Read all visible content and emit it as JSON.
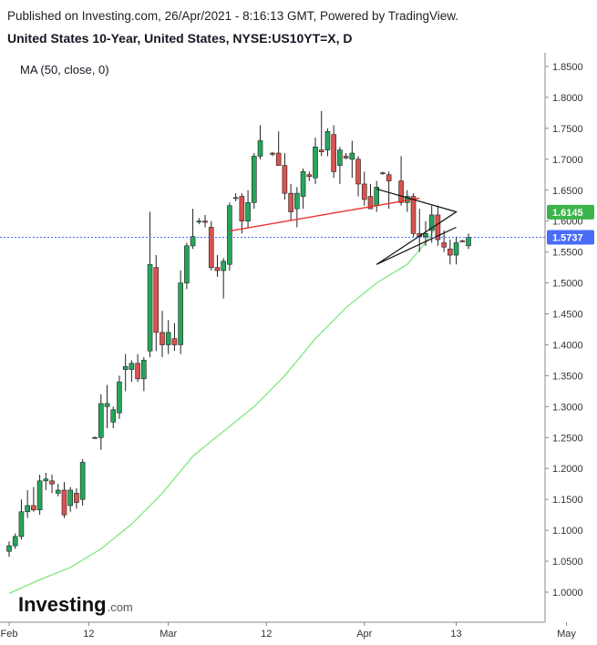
{
  "header": {
    "published": "Published on Investing.com, 26/Apr/2021 - 8:16:13 GMT, Powered by TradingView.",
    "title": "United States 10-Year, United States, NYSE:US10YT=X, D"
  },
  "indicator_label": "MA (50, close, 0)",
  "logo": {
    "text": "Investing",
    "suffix": ".com"
  },
  "colors": {
    "up": "#26a65b",
    "down": "#d9534f",
    "wick": "#222222",
    "ma": "#7ee87e",
    "price_tag": "#4a6cf7",
    "ma_tag": "#3cb44b",
    "trendline": "#e8302a",
    "triangle": "#111111"
  },
  "chart_data": {
    "type": "candlestick",
    "title": "United States 10-Year, United States, NYSE:US10YT=X, D",
    "ylim": [
      0.965,
      1.875
    ],
    "y_ticks": [
      "1.8500",
      "1.8000",
      "1.7500",
      "1.7000",
      "1.6500",
      "1.6000",
      "1.5500",
      "1.5000",
      "1.4500",
      "1.4000",
      "1.3500",
      "1.3000",
      "1.2500",
      "1.2000",
      "1.1500",
      "1.1000",
      "1.0500",
      "1.0000"
    ],
    "x_ticks": [
      {
        "label": "Feb",
        "index": 0
      },
      {
        "label": "12",
        "index": 13
      },
      {
        "label": "Mar",
        "index": 26
      },
      {
        "label": "12",
        "index": 42
      },
      {
        "label": "Apr",
        "index": 58
      },
      {
        "label": "13",
        "index": 73
      },
      {
        "label": "May",
        "index": 91
      }
    ],
    "candles": [
      {
        "o": 1.066,
        "h": 1.082,
        "l": 1.057,
        "c": 1.075
      },
      {
        "o": 1.075,
        "h": 1.095,
        "l": 1.07,
        "c": 1.09
      },
      {
        "o": 1.09,
        "h": 1.15,
        "l": 1.085,
        "c": 1.13
      },
      {
        "o": 1.13,
        "h": 1.165,
        "l": 1.12,
        "c": 1.14
      },
      {
        "o": 1.14,
        "h": 1.17,
        "l": 1.13,
        "c": 1.133
      },
      {
        "o": 1.133,
        "h": 1.19,
        "l": 1.125,
        "c": 1.18
      },
      {
        "o": 1.18,
        "h": 1.193,
        "l": 1.165,
        "c": 1.183
      },
      {
        "o": 1.18,
        "h": 1.19,
        "l": 1.16,
        "c": 1.175
      },
      {
        "o": 1.16,
        "h": 1.175,
        "l": 1.155,
        "c": 1.165
      },
      {
        "o": 1.165,
        "h": 1.178,
        "l": 1.12,
        "c": 1.125
      },
      {
        "o": 1.14,
        "h": 1.17,
        "l": 1.13,
        "c": 1.165
      },
      {
        "o": 1.16,
        "h": 1.168,
        "l": 1.135,
        "c": 1.145
      },
      {
        "o": 1.15,
        "h": 1.215,
        "l": 1.14,
        "c": 1.21
      },
      {
        "o": 1.25,
        "h": 1.252,
        "l": 1.248,
        "c": 1.25
      },
      {
        "o": 1.25,
        "h": 1.32,
        "l": 1.23,
        "c": 1.305
      },
      {
        "o": 1.3,
        "h": 1.335,
        "l": 1.265,
        "c": 1.305
      },
      {
        "o": 1.275,
        "h": 1.3,
        "l": 1.265,
        "c": 1.295
      },
      {
        "o": 1.29,
        "h": 1.35,
        "l": 1.28,
        "c": 1.34
      },
      {
        "o": 1.36,
        "h": 1.385,
        "l": 1.325,
        "c": 1.365
      },
      {
        "o": 1.36,
        "h": 1.375,
        "l": 1.34,
        "c": 1.37
      },
      {
        "o": 1.37,
        "h": 1.385,
        "l": 1.34,
        "c": 1.345
      },
      {
        "o": 1.345,
        "h": 1.38,
        "l": 1.325,
        "c": 1.375
      },
      {
        "o": 1.39,
        "h": 1.615,
        "l": 1.38,
        "c": 1.53
      },
      {
        "o": 1.525,
        "h": 1.545,
        "l": 1.39,
        "c": 1.42
      },
      {
        "o": 1.42,
        "h": 1.455,
        "l": 1.38,
        "c": 1.4
      },
      {
        "o": 1.4,
        "h": 1.44,
        "l": 1.385,
        "c": 1.42
      },
      {
        "o": 1.41,
        "h": 1.435,
        "l": 1.39,
        "c": 1.4
      },
      {
        "o": 1.4,
        "h": 1.52,
        "l": 1.385,
        "c": 1.5
      },
      {
        "o": 1.5,
        "h": 1.565,
        "l": 1.49,
        "c": 1.56
      },
      {
        "o": 1.56,
        "h": 1.62,
        "l": 1.555,
        "c": 1.575
      },
      {
        "o": 1.6,
        "h": 1.605,
        "l": 1.595,
        "c": 1.6
      },
      {
        "o": 1.6,
        "h": 1.61,
        "l": 1.59,
        "c": 1.598
      },
      {
        "o": 1.59,
        "h": 1.6,
        "l": 1.52,
        "c": 1.525
      },
      {
        "o": 1.525,
        "h": 1.545,
        "l": 1.51,
        "c": 1.52
      },
      {
        "o": 1.52,
        "h": 1.54,
        "l": 1.475,
        "c": 1.535
      },
      {
        "o": 1.53,
        "h": 1.63,
        "l": 1.52,
        "c": 1.625
      },
      {
        "o": 1.638,
        "h": 1.645,
        "l": 1.632,
        "c": 1.638
      },
      {
        "o": 1.64,
        "h": 1.645,
        "l": 1.58,
        "c": 1.6
      },
      {
        "o": 1.6,
        "h": 1.65,
        "l": 1.59,
        "c": 1.63
      },
      {
        "o": 1.63,
        "h": 1.71,
        "l": 1.62,
        "c": 1.705
      },
      {
        "o": 1.705,
        "h": 1.755,
        "l": 1.7,
        "c": 1.73
      },
      {
        "o": 1.71,
        "h": 1.712,
        "l": 1.705,
        "c": 1.708
      },
      {
        "o": 1.71,
        "h": 1.745,
        "l": 1.69,
        "c": 1.69
      },
      {
        "o": 1.69,
        "h": 1.71,
        "l": 1.635,
        "c": 1.645
      },
      {
        "o": 1.645,
        "h": 1.66,
        "l": 1.6,
        "c": 1.615
      },
      {
        "o": 1.62,
        "h": 1.655,
        "l": 1.59,
        "c": 1.645
      },
      {
        "o": 1.64,
        "h": 1.685,
        "l": 1.62,
        "c": 1.68
      },
      {
        "o": 1.675,
        "h": 1.68,
        "l": 1.665,
        "c": 1.672
      },
      {
        "o": 1.67,
        "h": 1.735,
        "l": 1.66,
        "c": 1.72
      },
      {
        "o": 1.715,
        "h": 1.778,
        "l": 1.705,
        "c": 1.712
      },
      {
        "o": 1.715,
        "h": 1.75,
        "l": 1.705,
        "c": 1.745
      },
      {
        "o": 1.74,
        "h": 1.755,
        "l": 1.67,
        "c": 1.68
      },
      {
        "o": 1.69,
        "h": 1.72,
        "l": 1.66,
        "c": 1.715
      },
      {
        "o": 1.705,
        "h": 1.71,
        "l": 1.7,
        "c": 1.702
      },
      {
        "o": 1.7,
        "h": 1.73,
        "l": 1.67,
        "c": 1.71
      },
      {
        "o": 1.7,
        "h": 1.705,
        "l": 1.64,
        "c": 1.66
      },
      {
        "o": 1.66,
        "h": 1.68,
        "l": 1.625,
        "c": 1.635
      },
      {
        "o": 1.64,
        "h": 1.66,
        "l": 1.62,
        "c": 1.62
      },
      {
        "o": 1.625,
        "h": 1.665,
        "l": 1.615,
        "c": 1.655
      },
      {
        "o": 1.678,
        "h": 1.68,
        "l": 1.675,
        "c": 1.677
      },
      {
        "o": 1.675,
        "h": 1.68,
        "l": 1.62,
        "c": 1.665
      },
      {
        "o": 1.665,
        "h": 1.705,
        "l": 1.625,
        "c": 1.63
      },
      {
        "o": 1.63,
        "h": 1.65,
        "l": 1.615,
        "c": 1.64
      },
      {
        "o": 1.64,
        "h": 1.645,
        "l": 1.575,
        "c": 1.58
      },
      {
        "o": 1.58,
        "h": 1.62,
        "l": 1.55,
        "c": 1.575
      },
      {
        "o": 1.575,
        "h": 1.6,
        "l": 1.56,
        "c": 1.58
      },
      {
        "o": 1.585,
        "h": 1.625,
        "l": 1.565,
        "c": 1.61
      },
      {
        "o": 1.61,
        "h": 1.625,
        "l": 1.56,
        "c": 1.57
      },
      {
        "o": 1.565,
        "h": 1.585,
        "l": 1.55,
        "c": 1.558
      },
      {
        "o": 1.555,
        "h": 1.57,
        "l": 1.53,
        "c": 1.545
      },
      {
        "o": 1.545,
        "h": 1.575,
        "l": 1.53,
        "c": 1.565
      },
      {
        "o": 1.568,
        "h": 1.57,
        "l": 1.566,
        "c": 1.567
      },
      {
        "o": 1.56,
        "h": 1.58,
        "l": 1.555,
        "c": 1.574
      }
    ],
    "candle_slots": [
      0,
      1,
      2,
      3,
      4,
      5,
      6,
      7,
      8,
      9,
      10,
      11,
      12,
      14,
      15,
      16,
      17,
      18,
      19,
      20,
      21,
      22,
      23,
      24,
      25,
      26,
      27,
      28,
      29,
      30,
      31,
      32,
      33,
      34,
      35,
      36,
      37,
      38,
      39,
      40,
      41,
      43,
      44,
      45,
      46,
      47,
      48,
      49,
      50,
      51,
      52,
      53,
      54,
      55,
      56,
      57,
      58,
      59,
      60,
      61,
      62,
      64,
      65,
      66,
      67,
      68,
      69,
      70,
      71,
      72,
      73,
      74,
      75
    ],
    "moving_average": {
      "name": "MA (50, close, 0)",
      "points": [
        [
          0,
          0.998
        ],
        [
          5,
          1.02
        ],
        [
          10,
          1.04
        ],
        [
          15,
          1.07
        ],
        [
          20,
          1.11
        ],
        [
          25,
          1.16
        ],
        [
          30,
          1.22
        ],
        [
          35,
          1.26
        ],
        [
          40,
          1.3
        ],
        [
          45,
          1.35
        ],
        [
          50,
          1.41
        ],
        [
          55,
          1.46
        ],
        [
          60,
          1.5
        ],
        [
          65,
          1.53
        ],
        [
          68,
          1.565
        ],
        [
          70,
          1.595
        ],
        [
          72,
          1.608
        ],
        [
          73,
          1.6145
        ]
      ]
    },
    "current_price": {
      "value": 1.5737,
      "label": "1.5737"
    },
    "ma_value": {
      "value": 1.6145,
      "label": "1.6145"
    },
    "trendlines": [
      {
        "type": "neckline",
        "from": [
          36,
          1.584
        ],
        "to": [
          67,
          1.637
        ]
      },
      {
        "type": "triangle",
        "points": [
          [
            60,
            1.652
          ],
          [
            73,
            1.615
          ],
          [
            60,
            1.53
          ]
        ]
      },
      {
        "type": "triangle-lower",
        "from": [
          60,
          1.53
        ],
        "to": [
          73,
          1.59
        ]
      }
    ],
    "xlabel": "",
    "ylabel": ""
  }
}
